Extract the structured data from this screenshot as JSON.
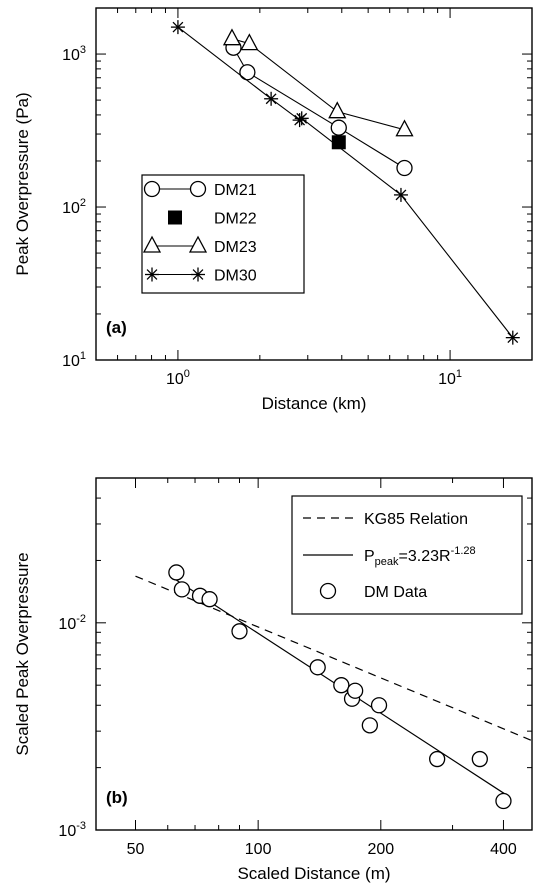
{
  "chart_data": [
    {
      "type": "line",
      "panel_label": "(a)",
      "xlabel": "Distance (km)",
      "ylabel": "Peak Overpressure (Pa)",
      "xscale": "log",
      "yscale": "log",
      "xlim": [
        0.5,
        20
      ],
      "ylim": [
        10,
        2000
      ],
      "xticks": [
        {
          "value": 1,
          "base": "10",
          "exp": "0"
        },
        {
          "value": 10,
          "base": "10",
          "exp": "1"
        }
      ],
      "yticks": [
        {
          "value": 10,
          "base": "10",
          "exp": "1"
        },
        {
          "value": 100,
          "base": "10",
          "exp": "2"
        },
        {
          "value": 1000,
          "base": "10",
          "exp": "3"
        }
      ],
      "legend_position": "center-left",
      "series": [
        {
          "name": "DM21",
          "marker": "circle",
          "line": true,
          "x": [
            1.6,
            1.8,
            3.9,
            6.8
          ],
          "y": [
            1100,
            760,
            330,
            180
          ]
        },
        {
          "name": "DM22",
          "marker": "square-filled",
          "line": false,
          "x": [
            3.9
          ],
          "y": [
            265
          ]
        },
        {
          "name": "DM23",
          "marker": "triangle",
          "line": true,
          "x": [
            1.58,
            1.83,
            3.85,
            6.8
          ],
          "y": [
            1260,
            1170,
            420,
            320
          ]
        },
        {
          "name": "DM30",
          "marker": "asterisk",
          "line": true,
          "x": [
            1.0,
            2.2,
            2.8,
            2.85,
            6.6,
            17.0
          ],
          "y": [
            1500,
            510,
            370,
            380,
            120,
            14
          ]
        }
      ]
    },
    {
      "type": "scatter",
      "panel_label": "(b)",
      "xlabel": "Scaled Distance (m)",
      "ylabel": "Scaled Peak Overpressure",
      "xscale": "log",
      "yscale": "log",
      "xlim": [
        40,
        470
      ],
      "ylim": [
        0.001,
        0.05
      ],
      "xticks": [
        {
          "value": 50,
          "label": "50"
        },
        {
          "value": 100,
          "label": "100"
        },
        {
          "value": 200,
          "label": "200"
        },
        {
          "value": 400,
          "label": "400"
        }
      ],
      "yticks": [
        {
          "value": 0.001,
          "base": "10",
          "exp": "-3"
        },
        {
          "value": 0.01,
          "base": "10",
          "exp": "-2"
        }
      ],
      "legend_position": "top-right",
      "legend": {
        "kg85": "KG85 Relation",
        "fit_prefix": "P",
        "fit_sub": "peak",
        "fit_mid": "=3.23R",
        "fit_sup": "-1.28",
        "data": "DM Data"
      },
      "kg85_line": {
        "x": [
          50,
          470
        ],
        "y": [
          0.0168,
          0.0027
        ]
      },
      "fit_line": {
        "coef": 3.23,
        "exp": -1.28,
        "x": [
          63,
          405
        ]
      },
      "points": {
        "x": [
          63,
          65,
          72,
          76,
          90,
          140,
          160,
          170,
          173,
          188,
          198,
          275,
          350,
          400
        ],
        "y": [
          0.0175,
          0.0145,
          0.0135,
          0.013,
          0.0091,
          0.0061,
          0.005,
          0.0043,
          0.0047,
          0.0032,
          0.004,
          0.0022,
          0.0022,
          0.00138
        ]
      }
    }
  ]
}
